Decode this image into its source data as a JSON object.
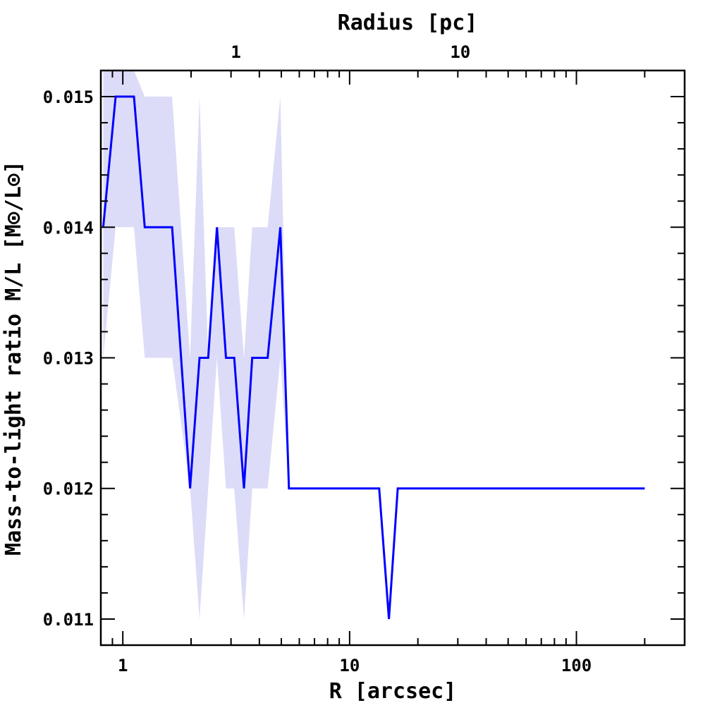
{
  "chart_data": {
    "type": "line",
    "title": "",
    "xlabel": "R [arcsec]",
    "ylabel": "Mass-to-light ratio M/L [M⊙/L⊙]",
    "x2label": "Radius [pc]",
    "xscale": "log",
    "x2scale": "log",
    "xlim": [
      0.8,
      300
    ],
    "ylim": [
      0.0108,
      0.0152
    ],
    "x2lim": [
      0.25,
      100
    ],
    "xticks": [
      1,
      10,
      100
    ],
    "x2ticks": [
      1,
      10
    ],
    "yticks": [
      0.011,
      0.012,
      0.013,
      0.014,
      0.015
    ],
    "ytick_labels": [
      "0.011",
      "0.012",
      "0.013",
      "0.014",
      "0.015"
    ],
    "xtick_labels": [
      "1",
      "10",
      "100"
    ],
    "x2tick_labels": [
      "1",
      "10"
    ],
    "grid": false,
    "series": [
      {
        "color": "#0000ff",
        "x": [
          0.82,
          0.93,
          1.12,
          1.25,
          1.65,
          1.98,
          2.18,
          2.38,
          2.6,
          2.85,
          3.1,
          3.42,
          3.72,
          4.35,
          4.95,
          5.4,
          13.5,
          14.9,
          16.3,
          200
        ],
        "y": [
          0.014,
          0.015,
          0.015,
          0.014,
          0.014,
          0.012,
          0.013,
          0.013,
          0.014,
          0.013,
          0.013,
          0.012,
          0.013,
          0.013,
          0.014,
          0.012,
          0.012,
          0.011,
          0.012,
          0.012
        ]
      }
    ],
    "band": {
      "color": "#dcdcf8",
      "x": [
        0.82,
        0.93,
        1.12,
        1.25,
        1.65,
        1.98,
        2.18,
        2.38,
        2.6,
        2.85,
        3.1,
        3.42,
        3.72,
        4.35,
        4.95,
        5.4
      ],
      "lower": [
        0.013,
        0.014,
        0.014,
        0.013,
        0.013,
        0.012,
        0.011,
        0.012,
        0.013,
        0.012,
        0.012,
        0.011,
        0.012,
        0.012,
        0.013,
        0.012
      ],
      "upper": [
        0.0152,
        0.0152,
        0.0152,
        0.015,
        0.015,
        0.013,
        0.015,
        0.013,
        0.014,
        0.014,
        0.014,
        0.013,
        0.014,
        0.014,
        0.015,
        0.012
      ]
    }
  }
}
